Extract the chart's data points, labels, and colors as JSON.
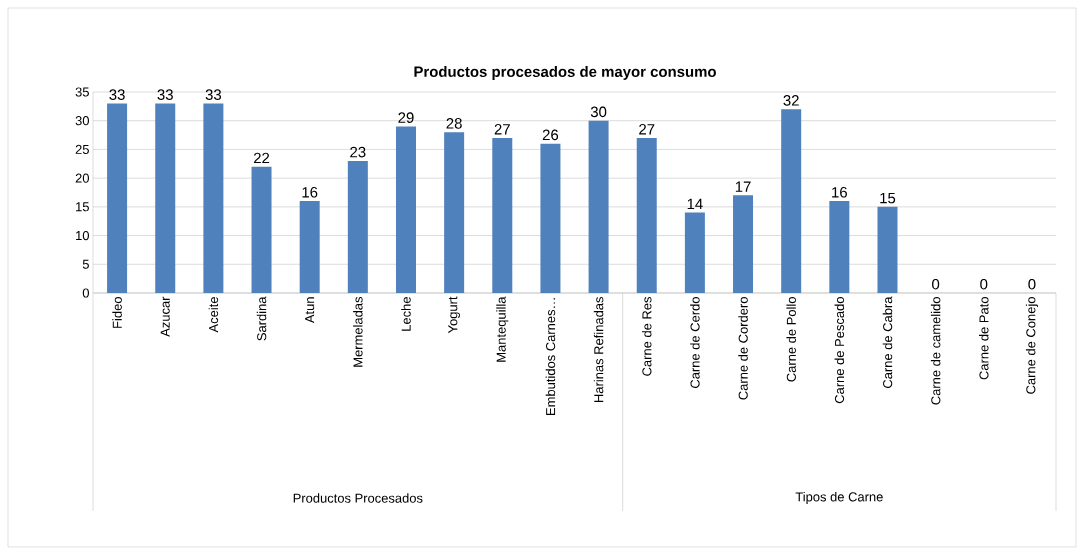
{
  "chart_data": {
    "type": "bar",
    "title": "Productos procesados de mayor consumo",
    "categories": [
      "Fideo",
      "Azucar",
      "Aceite",
      "Sardina",
      "Atun",
      "Mermeladas",
      "Leche",
      "Yogurt",
      "Mantequilla",
      "Embutidos Carnes…",
      "Harinas Refinadas",
      "Carne  de Res",
      "Carne de Cerdo",
      "Carne de Cordero",
      "Carne de Pollo",
      "Carne de Pescado",
      "Carne de Cabra",
      "Carne de camelido",
      "Carne de Pato",
      "Carne de Conejo"
    ],
    "values": [
      33,
      33,
      33,
      22,
      16,
      23,
      29,
      28,
      27,
      26,
      30,
      27,
      14,
      17,
      32,
      16,
      15,
      0,
      0,
      0
    ],
    "color": "#4f81bd",
    "ylim": [
      0,
      35
    ],
    "yticks": [
      0,
      5,
      10,
      15,
      20,
      25,
      30,
      35
    ],
    "grid": "y",
    "data_labels": true,
    "annotations": [
      "Productos Procesados",
      "Tipos de Carne"
    ]
  }
}
